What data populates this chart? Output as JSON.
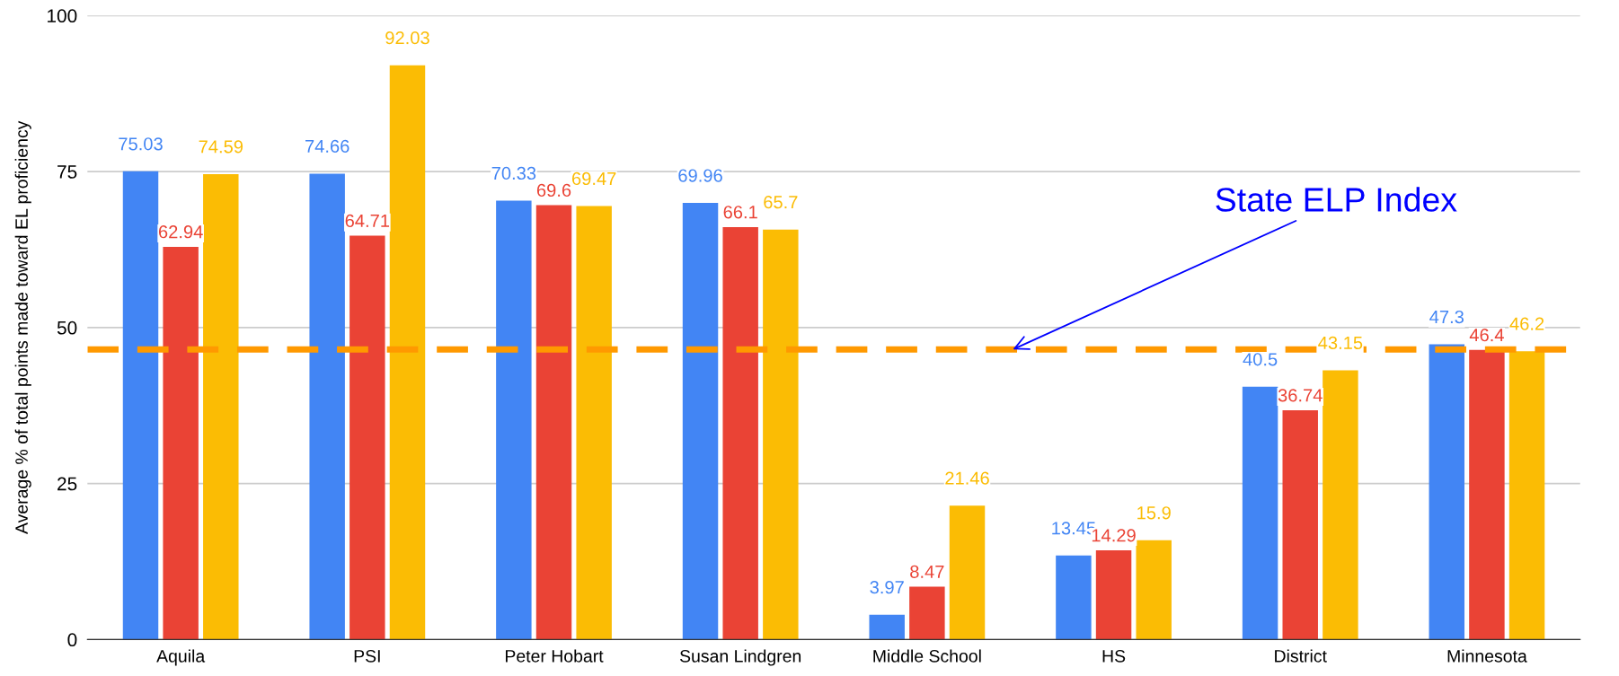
{
  "chart_data": {
    "type": "bar",
    "ylabel": "Average % of total points made toward EL proficiency",
    "categories": [
      "Aquila",
      "PSI",
      "Peter Hobart",
      "Susan Lindgren",
      "Middle School",
      "HS",
      "District",
      "Minnesota"
    ],
    "series": [
      {
        "color": "#4285f4",
        "values": [
          75.03,
          74.66,
          70.33,
          69.96,
          3.97,
          13.45,
          40.5,
          47.3
        ]
      },
      {
        "color": "#ea4335",
        "values": [
          62.94,
          64.71,
          69.6,
          66.1,
          8.47,
          14.29,
          36.74,
          46.4
        ]
      },
      {
        "color": "#fbbc04",
        "values": [
          74.59,
          92.03,
          69.47,
          65.7,
          21.46,
          15.9,
          43.15,
          46.2
        ]
      }
    ],
    "ylim": [
      0,
      100
    ],
    "yticks": [
      0,
      25,
      50,
      75,
      100
    ],
    "grid": "y",
    "data_labels": true,
    "ref_lines": [
      {
        "axis": "y",
        "value": 46.5,
        "label": "State ELP Index",
        "color": "#ff9900",
        "line_style": "dashed"
      }
    ]
  }
}
